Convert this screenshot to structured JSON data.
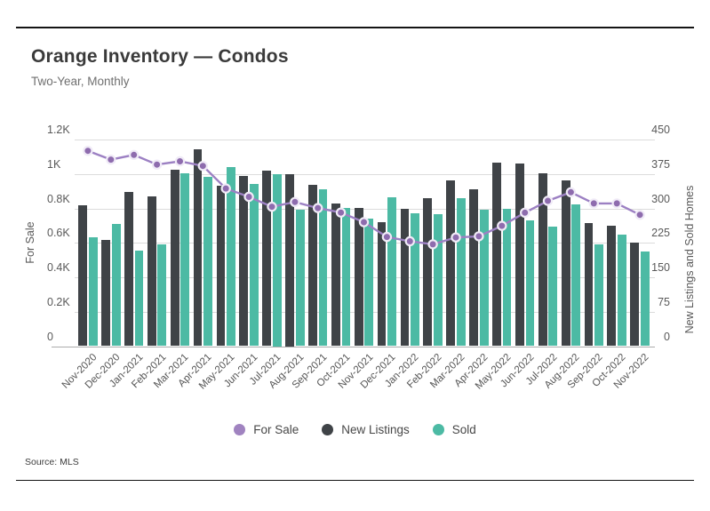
{
  "header": {
    "title": "Orange Inventory — Condos",
    "subtitle": "Two-Year, Monthly"
  },
  "footer": {
    "source": "Source: MLS"
  },
  "colors": {
    "for_sale_line": "#9c80c3",
    "for_sale_marker": "#8e6cae",
    "for_sale_marker_ring": "#f0ebf7",
    "new_listings_bar": "#3f4347",
    "sold_bar": "#4cbaa4",
    "gridline": "#dcdcdc"
  },
  "chart_data": {
    "type": "bar",
    "title": "Orange Inventory — Condos",
    "subtitle": "Two-Year, Monthly",
    "grid": true,
    "legend_position": "bottom",
    "categories": [
      "Nov-2020",
      "Dec-2020",
      "Jan-2021",
      "Feb-2021",
      "Mar-2021",
      "Apr-2021",
      "May-2021",
      "Jun-2021",
      "Jul-2021",
      "Aug-2021",
      "Sep-2021",
      "Oct-2021",
      "Nov-2021",
      "Dec-2021",
      "Jan-2022",
      "Feb-2022",
      "Mar-2022",
      "Apr-2022",
      "May-2022",
      "Jun-2022",
      "Jul-2022",
      "Aug-2022",
      "Sep-2022",
      "Oct-2022",
      "Nov-2022"
    ],
    "series": [
      {
        "name": "For Sale",
        "kind": "line",
        "axis": "left",
        "legend_color": "#a083c0",
        "values": [
          1136,
          1085,
          1112,
          1056,
          1075,
          1048,
          917,
          868,
          811,
          838,
          803,
          777,
          721,
          635,
          610,
          592,
          632,
          639,
          700,
          776,
          845,
          895,
          830,
          830,
          764
        ]
      },
      {
        "name": "New Listings",
        "kind": "bar",
        "axis": "right",
        "legend_color": "#3f4347",
        "values": [
          307,
          232,
          336,
          327,
          385,
          430,
          350,
          371,
          382,
          375,
          351,
          311,
          301,
          271,
          300,
          322,
          361,
          343,
          401,
          398,
          377,
          361,
          269,
          262,
          226
        ]
      },
      {
        "name": "Sold",
        "kind": "bar",
        "axis": "right",
        "legend_color": "#4cbaa4",
        "values": [
          238,
          266,
          209,
          222,
          377,
          370,
          390,
          354,
          375,
          298,
          342,
          301,
          279,
          325,
          290,
          287,
          322,
          297,
          300,
          274,
          261,
          309,
          222,
          243,
          207
        ]
      }
    ],
    "left_axis": {
      "label": "For Sale",
      "range": [
        0,
        1200
      ],
      "ticks": [
        "0",
        "0.2K",
        "0.4K",
        "0.6K",
        "0.8K",
        "1K",
        "1.2K"
      ],
      "tick_values": [
        0,
        200,
        400,
        600,
        800,
        1000,
        1200
      ]
    },
    "right_axis": {
      "label": "New Listings and Sold Homes",
      "range": [
        0,
        450
      ],
      "ticks": [
        "0",
        "75",
        "150",
        "225",
        "300",
        "375",
        "450"
      ],
      "tick_values": [
        0,
        75,
        150,
        225,
        300,
        375,
        450
      ]
    }
  }
}
